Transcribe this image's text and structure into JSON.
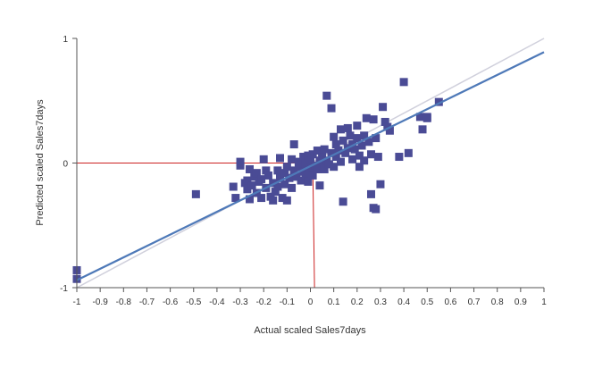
{
  "chart_data": {
    "type": "scatter",
    "title": "",
    "xlabel": "Actual scaled Sales7days",
    "ylabel": "Predicted scaled Sales7days",
    "xlim": [
      -1,
      1
    ],
    "ylim": [
      -1,
      1
    ],
    "x_ticks": [
      "-1",
      "-0.9",
      "-0.8",
      "-0.7",
      "-0.6",
      "-0.5",
      "-0.4",
      "-0.3",
      "-0.2",
      "-0.1",
      "0",
      "0.1",
      "0.2",
      "0.3",
      "0.4",
      "0.5",
      "0.6",
      "0.7",
      "0.8",
      "0.9",
      "1"
    ],
    "y_ticks": [
      "-1",
      "0",
      "1"
    ],
    "grid": false,
    "legend": "none",
    "colors": {
      "points": "#4a4b95",
      "fit_line": "#4e79b8",
      "identity_line": "#d0d0dc",
      "crosshair": "#cc2222",
      "axis": "#555555"
    },
    "fit_line": {
      "x": [
        -1,
        1
      ],
      "y": [
        -0.94,
        0.89
      ]
    },
    "identity_line": {
      "x": [
        -1,
        1
      ],
      "y": [
        -1,
        1
      ]
    },
    "crosshair": {
      "x": 0.01,
      "y": 0.0
    },
    "points": [
      {
        "x": -1.0,
        "y": -0.86
      },
      {
        "x": -1.0,
        "y": -0.93
      },
      {
        "x": -0.49,
        "y": -0.25
      },
      {
        "x": -0.33,
        "y": -0.19
      },
      {
        "x": -0.32,
        "y": -0.28
      },
      {
        "x": -0.3,
        "y": -0.02
      },
      {
        "x": -0.3,
        "y": 0.01
      },
      {
        "x": -0.28,
        "y": -0.16
      },
      {
        "x": -0.27,
        "y": -0.21
      },
      {
        "x": -0.27,
        "y": -0.14
      },
      {
        "x": -0.26,
        "y": -0.05
      },
      {
        "x": -0.26,
        "y": -0.29
      },
      {
        "x": -0.25,
        "y": -0.18
      },
      {
        "x": -0.24,
        "y": -0.11
      },
      {
        "x": -0.23,
        "y": -0.24
      },
      {
        "x": -0.23,
        "y": -0.08
      },
      {
        "x": -0.22,
        "y": -0.15
      },
      {
        "x": -0.21,
        "y": -0.28
      },
      {
        "x": -0.21,
        "y": -0.13
      },
      {
        "x": -0.2,
        "y": 0.03
      },
      {
        "x": -0.19,
        "y": -0.06
      },
      {
        "x": -0.19,
        "y": -0.2
      },
      {
        "x": -0.18,
        "y": -0.1
      },
      {
        "x": -0.17,
        "y": -0.27
      },
      {
        "x": -0.16,
        "y": -0.16
      },
      {
        "x": -0.16,
        "y": -0.3
      },
      {
        "x": -0.15,
        "y": -0.23
      },
      {
        "x": -0.14,
        "y": -0.06
      },
      {
        "x": -0.14,
        "y": -0.19
      },
      {
        "x": -0.13,
        "y": -0.12
      },
      {
        "x": -0.13,
        "y": 0.04
      },
      {
        "x": -0.12,
        "y": -0.28
      },
      {
        "x": -0.11,
        "y": -0.08
      },
      {
        "x": -0.11,
        "y": -0.17
      },
      {
        "x": -0.1,
        "y": -0.3
      },
      {
        "x": -0.1,
        "y": -0.03
      },
      {
        "x": -0.09,
        "y": -0.12
      },
      {
        "x": -0.08,
        "y": 0.03
      },
      {
        "x": -0.08,
        "y": -0.2
      },
      {
        "x": -0.07,
        "y": 0.15
      },
      {
        "x": -0.07,
        "y": -0.06
      },
      {
        "x": -0.06,
        "y": -0.11
      },
      {
        "x": -0.05,
        "y": 0.01
      },
      {
        "x": -0.05,
        "y": -0.03
      },
      {
        "x": -0.04,
        "y": -0.14
      },
      {
        "x": -0.03,
        "y": 0.05
      },
      {
        "x": -0.03,
        "y": -0.07
      },
      {
        "x": -0.02,
        "y": -0.01
      },
      {
        "x": -0.02,
        "y": -0.1
      },
      {
        "x": -0.01,
        "y": 0.06
      },
      {
        "x": -0.01,
        "y": -0.15
      },
      {
        "x": 0.0,
        "y": 0.02
      },
      {
        "x": 0.0,
        "y": -0.04
      },
      {
        "x": 0.01,
        "y": -0.1
      },
      {
        "x": 0.01,
        "y": 0.07
      },
      {
        "x": 0.02,
        "y": -0.02
      },
      {
        "x": 0.03,
        "y": 0.1
      },
      {
        "x": 0.03,
        "y": -0.05
      },
      {
        "x": 0.04,
        "y": 0.02
      },
      {
        "x": 0.04,
        "y": -0.18
      },
      {
        "x": 0.05,
        "y": -0.02
      },
      {
        "x": 0.05,
        "y": 0.05
      },
      {
        "x": 0.06,
        "y": 0.11
      },
      {
        "x": 0.06,
        "y": -0.05
      },
      {
        "x": 0.07,
        "y": 0.02
      },
      {
        "x": 0.07,
        "y": 0.54
      },
      {
        "x": 0.08,
        "y": -0.01
      },
      {
        "x": 0.09,
        "y": 0.08
      },
      {
        "x": 0.09,
        "y": 0.44
      },
      {
        "x": 0.1,
        "y": 0.21
      },
      {
        "x": 0.1,
        "y": -0.03
      },
      {
        "x": 0.11,
        "y": 0.05
      },
      {
        "x": 0.11,
        "y": 0.15
      },
      {
        "x": 0.12,
        "y": 0.1
      },
      {
        "x": 0.13,
        "y": 0.27
      },
      {
        "x": 0.13,
        "y": 0.01
      },
      {
        "x": 0.14,
        "y": 0.18
      },
      {
        "x": 0.14,
        "y": -0.31
      },
      {
        "x": 0.15,
        "y": 0.08
      },
      {
        "x": 0.16,
        "y": 0.12
      },
      {
        "x": 0.16,
        "y": 0.28
      },
      {
        "x": 0.17,
        "y": 0.22
      },
      {
        "x": 0.18,
        "y": 0.03
      },
      {
        "x": 0.18,
        "y": 0.15
      },
      {
        "x": 0.19,
        "y": 0.11
      },
      {
        "x": 0.2,
        "y": 0.2
      },
      {
        "x": 0.2,
        "y": 0.3
      },
      {
        "x": 0.21,
        "y": -0.03
      },
      {
        "x": 0.21,
        "y": 0.06
      },
      {
        "x": 0.22,
        "y": 0.14
      },
      {
        "x": 0.23,
        "y": 0.22
      },
      {
        "x": 0.23,
        "y": 0.02
      },
      {
        "x": 0.24,
        "y": 0.36
      },
      {
        "x": 0.25,
        "y": 0.17
      },
      {
        "x": 0.26,
        "y": 0.07
      },
      {
        "x": 0.26,
        "y": -0.25
      },
      {
        "x": 0.27,
        "y": 0.35
      },
      {
        "x": 0.27,
        "y": -0.36
      },
      {
        "x": 0.28,
        "y": 0.2
      },
      {
        "x": 0.28,
        "y": -0.37
      },
      {
        "x": 0.29,
        "y": 0.05
      },
      {
        "x": 0.3,
        "y": -0.17
      },
      {
        "x": 0.31,
        "y": 0.45
      },
      {
        "x": 0.32,
        "y": 0.33
      },
      {
        "x": 0.33,
        "y": 0.29
      },
      {
        "x": 0.34,
        "y": 0.26
      },
      {
        "x": 0.38,
        "y": 0.05
      },
      {
        "x": 0.4,
        "y": 0.65
      },
      {
        "x": 0.42,
        "y": 0.08
      },
      {
        "x": 0.47,
        "y": 0.37
      },
      {
        "x": 0.48,
        "y": 0.27
      },
      {
        "x": 0.5,
        "y": 0.36
      },
      {
        "x": 0.5,
        "y": 0.37
      },
      {
        "x": 0.55,
        "y": 0.49
      }
    ]
  }
}
